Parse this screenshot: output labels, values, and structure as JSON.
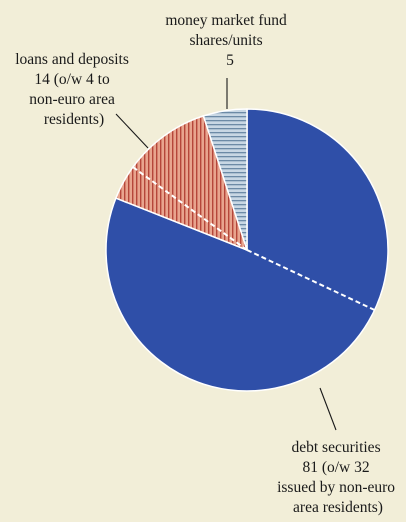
{
  "chart_data": {
    "type": "pie",
    "title": "",
    "slices": [
      {
        "name": "debt securities",
        "value": 81,
        "color": "#2f4fa8",
        "pattern": "solid",
        "label_lines": [
          "debt securities",
          "81 (o/w 32",
          "issued by non-euro",
          "area residents)"
        ],
        "subslice": {
          "name": "issued by non-euro area residents",
          "value": 32
        }
      },
      {
        "name": "loans and deposits",
        "value": 14,
        "color": "#d4806c",
        "pattern": "vertical-stripes",
        "label_lines": [
          "loans and deposits",
          "14 (o/w 4 to",
          "non-euro area",
          "residents)"
        ],
        "subslice": {
          "name": "to non-euro area residents",
          "value": 4
        }
      },
      {
        "name": "money market fund shares/units",
        "value": 5,
        "color": "#b3c7d8",
        "pattern": "horizontal-stripes",
        "label_lines": [
          "money market fund",
          "shares/units",
          "5"
        ]
      }
    ]
  }
}
